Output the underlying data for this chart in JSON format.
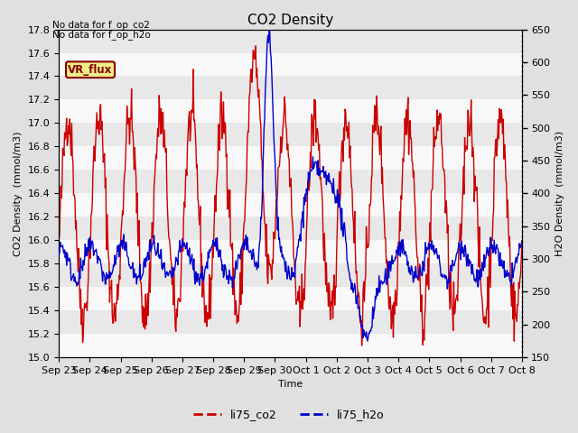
{
  "title": "CO2 Density",
  "xlabel": "Time",
  "ylabel_left": "CO2 Density  (mmol/m3)",
  "ylabel_right": "H2O Density  (mmol/m3)",
  "ylim_left": [
    15.0,
    17.8
  ],
  "ylim_right": [
    150,
    650
  ],
  "yticks_left": [
    15.0,
    15.2,
    15.4,
    15.6,
    15.8,
    16.0,
    16.2,
    16.4,
    16.6,
    16.8,
    17.0,
    17.2,
    17.4,
    17.6,
    17.8
  ],
  "yticks_right": [
    150,
    200,
    250,
    300,
    350,
    400,
    450,
    500,
    550,
    600,
    650
  ],
  "xtick_labels": [
    "Sep 23",
    "Sep 24",
    "Sep 25",
    "Sep 26",
    "Sep 27",
    "Sep 28",
    "Sep 29",
    "Sep 30",
    "Oct 1",
    "Oct 2",
    "Oct 3",
    "Oct 4",
    "Oct 5",
    "Oct 6",
    "Oct 7",
    "Oct 8"
  ],
  "annotation1": "No data for f_op_co2",
  "annotation2": "No data for f_op_h2o",
  "vr_flux_label": "VR_flux",
  "legend_labels": [
    "li75_co2",
    "li75_h2o"
  ],
  "line_colors": [
    "#cc0000",
    "#0000cc"
  ],
  "bg_color": "#e0e0e0",
  "plot_bg_color": "#e8e8e8",
  "band_color1": "#e8e8e8",
  "band_color2": "#f8f8f8",
  "vr_flux_bg": "#eeee88",
  "vr_flux_border": "#880000",
  "title_fontsize": 11,
  "axis_fontsize": 8,
  "tick_fontsize": 8
}
